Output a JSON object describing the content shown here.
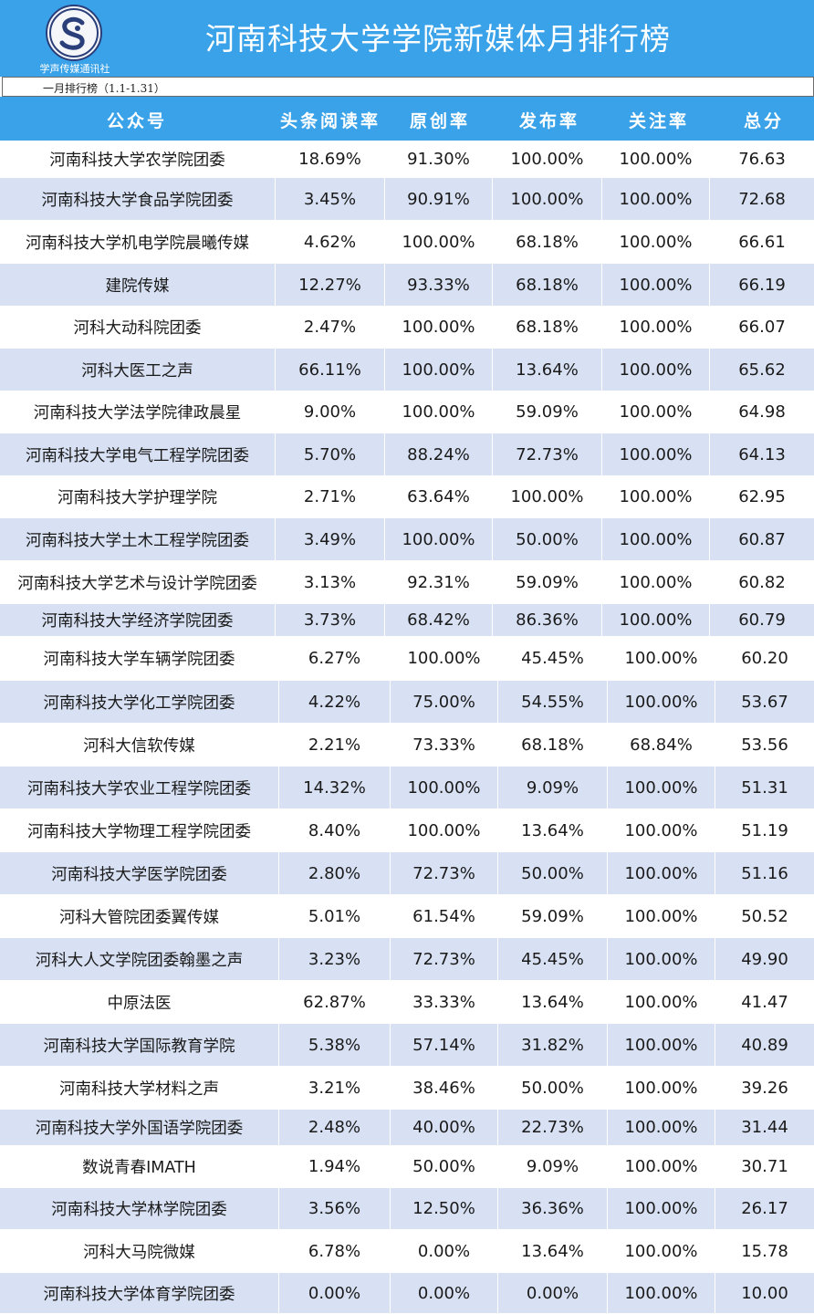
{
  "banner": {
    "title": "河南科技大学学院新媒体月排行榜",
    "logo_label": "学声传媒通讯社",
    "logo_icon": "xuesheng-logo-icon"
  },
  "subtitle": "一月排行榜（1.1-1.31）",
  "headers": [
    "公众号",
    "头条阅读率",
    "原创率",
    "发布率",
    "关注率",
    "总分"
  ],
  "rows": [
    {
      "name": "河南科技大学农学院团委",
      "read": "18.69%",
      "original": "91.30%",
      "publish": "100.00%",
      "follow": "100.00%",
      "score": "76.63"
    },
    {
      "name": "河南科技大学食品学院团委",
      "read": "3.45%",
      "original": "90.91%",
      "publish": "100.00%",
      "follow": "100.00%",
      "score": "72.68"
    },
    {
      "name": "河南科技大学机电学院晨曦传媒",
      "read": "4.62%",
      "original": "100.00%",
      "publish": "68.18%",
      "follow": "100.00%",
      "score": "66.61"
    },
    {
      "name": "建院传媒",
      "read": "12.27%",
      "original": "93.33%",
      "publish": "68.18%",
      "follow": "100.00%",
      "score": "66.19"
    },
    {
      "name": "河科大动科院团委",
      "read": "2.47%",
      "original": "100.00%",
      "publish": "68.18%",
      "follow": "100.00%",
      "score": "66.07"
    },
    {
      "name": "河科大医工之声",
      "read": "66.11%",
      "original": "100.00%",
      "publish": "13.64%",
      "follow": "100.00%",
      "score": "65.62"
    },
    {
      "name": "河南科技大学法学院律政晨星",
      "read": "9.00%",
      "original": "100.00%",
      "publish": "59.09%",
      "follow": "100.00%",
      "score": "64.98"
    },
    {
      "name": "河南科技大学电气工程学院团委",
      "read": "5.70%",
      "original": "88.24%",
      "publish": "72.73%",
      "follow": "100.00%",
      "score": "64.13"
    },
    {
      "name": "河南科技大学护理学院",
      "read": "2.71%",
      "original": "63.64%",
      "publish": "100.00%",
      "follow": "100.00%",
      "score": "62.95"
    },
    {
      "name": "河南科技大学土木工程学院团委",
      "read": "3.49%",
      "original": "100.00%",
      "publish": "50.00%",
      "follow": "100.00%",
      "score": "60.87"
    },
    {
      "name": "河南科技大学艺术与设计学院团委",
      "read": "3.13%",
      "original": "92.31%",
      "publish": "59.09%",
      "follow": "100.00%",
      "score": "60.82"
    },
    {
      "name": "河南科技大学经济学院团委",
      "read": "3.73%",
      "original": "68.42%",
      "publish": "86.36%",
      "follow": "100.00%",
      "score": "60.79"
    },
    {
      "name": "河南科技大学车辆学院团委",
      "read": "6.27%",
      "original": "100.00%",
      "publish": "45.45%",
      "follow": "100.00%",
      "score": "60.20"
    },
    {
      "name": "河南科技大学化工学院团委",
      "read": "4.22%",
      "original": "75.00%",
      "publish": "54.55%",
      "follow": "100.00%",
      "score": "53.67"
    },
    {
      "name": "河科大信软传媒",
      "read": "2.21%",
      "original": "73.33%",
      "publish": "68.18%",
      "follow": "68.84%",
      "score": "53.56"
    },
    {
      "name": "河南科技大学农业工程学院团委",
      "read": "14.32%",
      "original": "100.00%",
      "publish": "9.09%",
      "follow": "100.00%",
      "score": "51.31"
    },
    {
      "name": "河南科技大学物理工程学院团委",
      "read": "8.40%",
      "original": "100.00%",
      "publish": "13.64%",
      "follow": "100.00%",
      "score": "51.19"
    },
    {
      "name": "河南科技大学医学院团委",
      "read": "2.80%",
      "original": "72.73%",
      "publish": "50.00%",
      "follow": "100.00%",
      "score": "51.16"
    },
    {
      "name": "河科大管院团委翼传媒",
      "read": "5.01%",
      "original": "61.54%",
      "publish": "59.09%",
      "follow": "100.00%",
      "score": "50.52"
    },
    {
      "name": "河科大人文学院团委翰墨之声",
      "read": "3.23%",
      "original": "72.73%",
      "publish": "45.45%",
      "follow": "100.00%",
      "score": "49.90"
    },
    {
      "name": "中原法医",
      "read": "62.87%",
      "original": "33.33%",
      "publish": "13.64%",
      "follow": "100.00%",
      "score": "41.47"
    },
    {
      "name": "河南科技大学国际教育学院",
      "read": "5.38%",
      "original": "57.14%",
      "publish": "31.82%",
      "follow": "100.00%",
      "score": "40.89"
    },
    {
      "name": "河南科技大学材料之声",
      "read": "3.21%",
      "original": "38.46%",
      "publish": "50.00%",
      "follow": "100.00%",
      "score": "39.26"
    },
    {
      "name": "河南科技大学外国语学院团委",
      "read": "2.48%",
      "original": "40.00%",
      "publish": "22.73%",
      "follow": "100.00%",
      "score": "31.44"
    },
    {
      "name": "数说青春IMATH",
      "read": "1.94%",
      "original": "50.00%",
      "publish": "9.09%",
      "follow": "100.00%",
      "score": "30.71"
    },
    {
      "name": "河南科技大学林学院团委",
      "read": "3.56%",
      "original": "12.50%",
      "publish": "36.36%",
      "follow": "100.00%",
      "score": "26.17"
    },
    {
      "name": "河科大马院微媒",
      "read": "6.78%",
      "original": "0.00%",
      "publish": "13.64%",
      "follow": "100.00%",
      "score": "15.78"
    },
    {
      "name": "河南科技大学体育学院团委",
      "read": "0.00%",
      "original": "0.00%",
      "publish": "0.00%",
      "follow": "100.00%",
      "score": "10.00"
    }
  ]
}
